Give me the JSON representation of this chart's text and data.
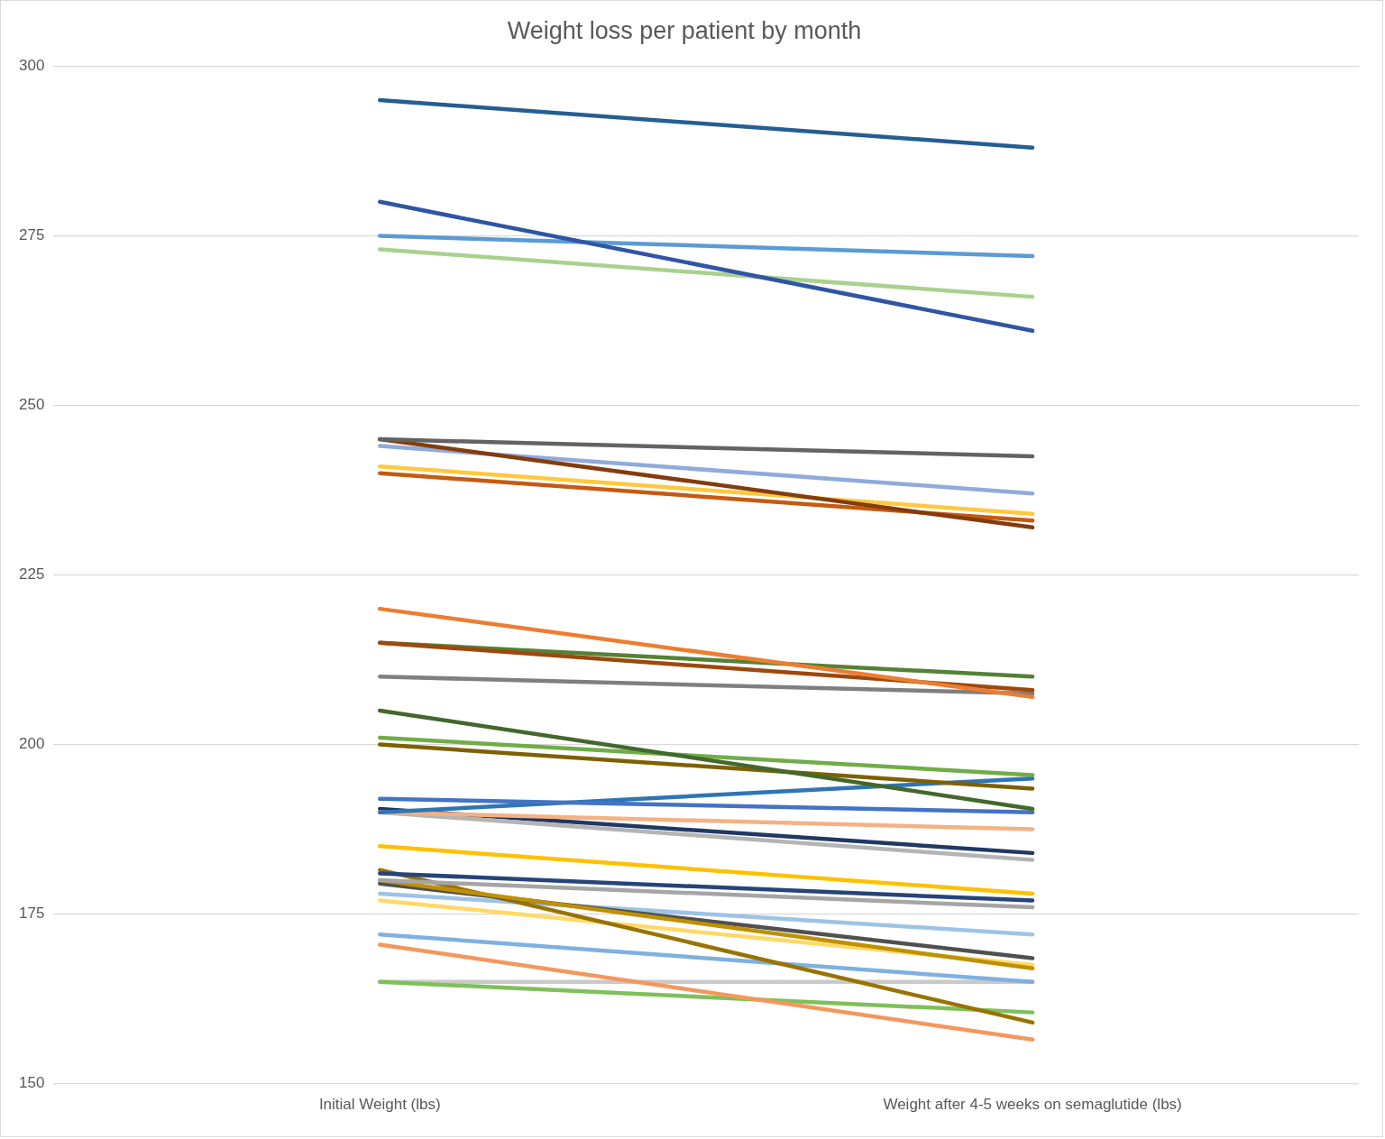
{
  "chart_data": {
    "type": "line",
    "title": "Weight loss per patient by month",
    "categories": [
      "Initial Weight (lbs)",
      "Weight after 4-5 weeks on semaglutide (lbs)"
    ],
    "ylim": [
      150,
      300
    ],
    "yticks": [
      150,
      175,
      200,
      225,
      250,
      275,
      300
    ],
    "grid": "y",
    "legend": false,
    "marker": "none",
    "line_style": "solid",
    "series": [
      {
        "color": "#255e91",
        "values": [
          295,
          288
        ]
      },
      {
        "color": "#2f55a4",
        "values": [
          280,
          261
        ]
      },
      {
        "color": "#5b9bd5",
        "values": [
          275,
          272
        ]
      },
      {
        "color": "#a9d18e",
        "values": [
          273,
          266
        ]
      },
      {
        "color": "#636363",
        "values": [
          245,
          242.5
        ]
      },
      {
        "color": "#843c0c",
        "values": [
          245,
          232
        ]
      },
      {
        "color": "#8faadc",
        "values": [
          244,
          237
        ]
      },
      {
        "color": "#ffc83d",
        "values": [
          241,
          234
        ]
      },
      {
        "color": "#c55a11",
        "values": [
          240,
          233
        ]
      },
      {
        "color": "#ed7d31",
        "values": [
          220,
          207
        ]
      },
      {
        "color": "#9e480e",
        "values": [
          215,
          208
        ]
      },
      {
        "color": "#548235",
        "values": [
          215,
          210
        ]
      },
      {
        "color": "#7f7f7f",
        "values": [
          210,
          207.5
        ]
      },
      {
        "color": "#43682b",
        "values": [
          205,
          190.5
        ]
      },
      {
        "color": "#70ad47",
        "values": [
          201,
          195.5
        ]
      },
      {
        "color": "#7f6000",
        "values": [
          200,
          193.5
        ]
      },
      {
        "color": "#4472c4",
        "values": [
          192,
          190
        ]
      },
      {
        "color": "#2e75b6",
        "values": [
          190,
          195
        ]
      },
      {
        "color": "#f4b183",
        "values": [
          190,
          187.5
        ]
      },
      {
        "color": "#b4b4b4",
        "values": [
          190,
          183
        ]
      },
      {
        "color": "#1f3864",
        "values": [
          190.5,
          184
        ]
      },
      {
        "color": "#ffc000",
        "values": [
          185,
          178
        ]
      },
      {
        "color": "#a5a5a5",
        "values": [
          180,
          176
        ]
      },
      {
        "color": "#264478",
        "values": [
          181,
          177
        ]
      },
      {
        "color": "#bf9000",
        "values": [
          180,
          167
        ]
      },
      {
        "color": "#505050",
        "values": [
          179.5,
          168.5
        ]
      },
      {
        "color": "#997300",
        "values": [
          181.5,
          159
        ]
      },
      {
        "color": "#9dc3e6",
        "values": [
          178,
          172
        ]
      },
      {
        "color": "#ffd966",
        "values": [
          177,
          167.5
        ]
      },
      {
        "color": "#7fb0e0",
        "values": [
          172,
          165
        ]
      },
      {
        "color": "#f4975d",
        "values": [
          170.5,
          156.5
        ]
      },
      {
        "color": "#7ec05a",
        "values": [
          165,
          160.5
        ]
      },
      {
        "color": "#c9c9c9",
        "values": [
          165,
          165
        ]
      }
    ]
  }
}
